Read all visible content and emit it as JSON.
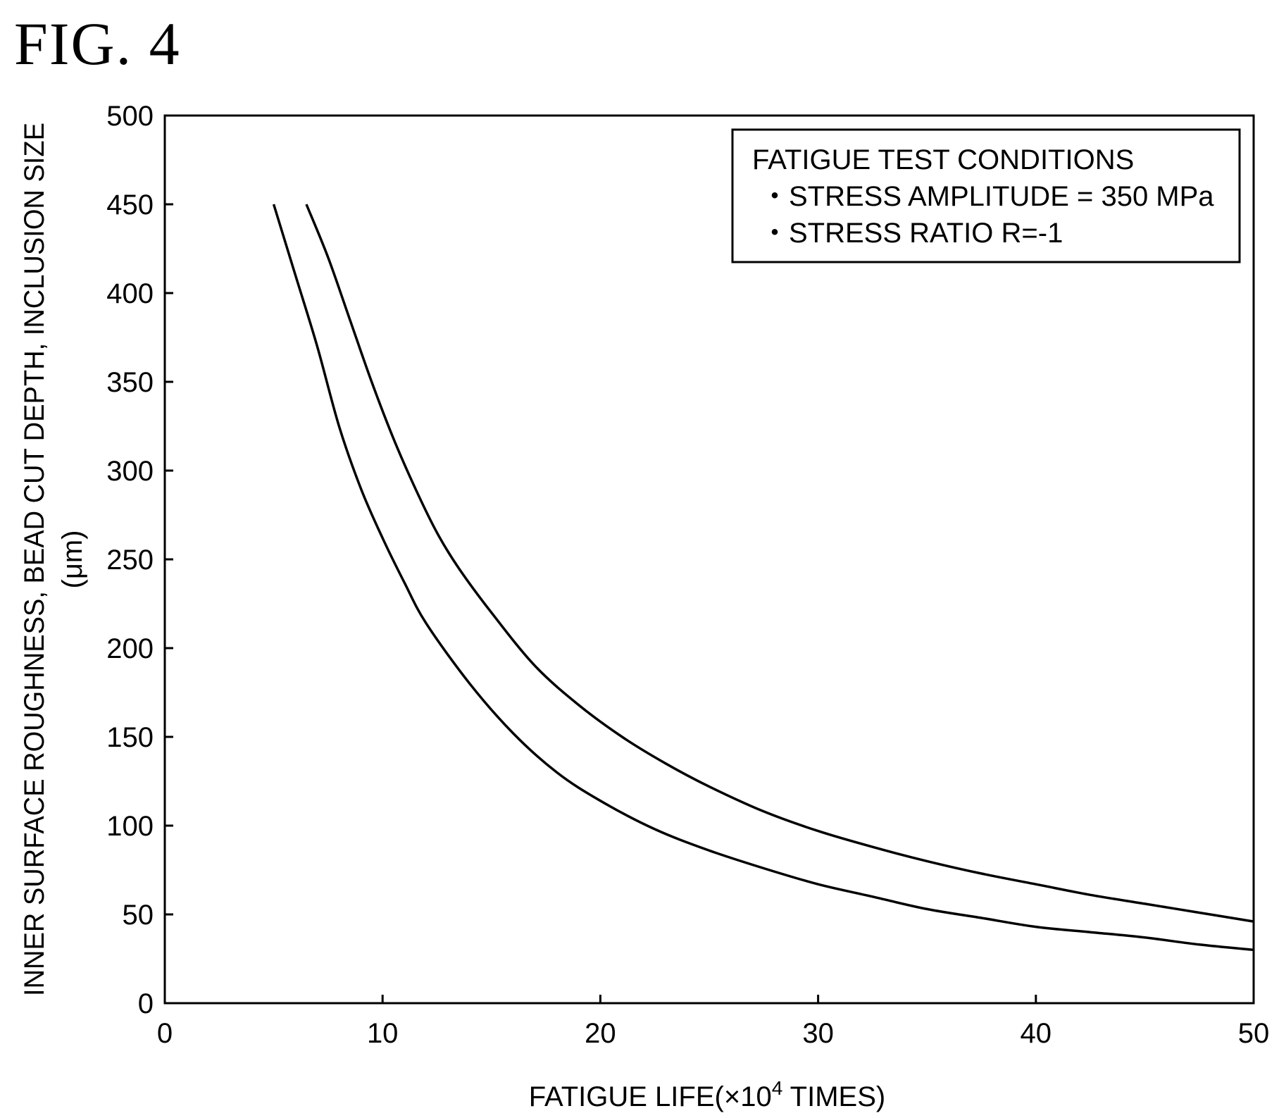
{
  "figure_label": "FIG. 4",
  "chart_data": {
    "type": "line",
    "xlabel_main": "FATIGUE LIFE(×10",
    "xlabel_sup": "4",
    "xlabel_tail": " TIMES)",
    "ylabel_line1": "INNER SURFACE ROUGHNESS, BEAD CUT DEPTH, INCLUSION SIZE",
    "ylabel_line2": "(μm)",
    "xlim": [
      0,
      50
    ],
    "ylim": [
      0,
      500
    ],
    "xticks": [
      0,
      10,
      20,
      30,
      40,
      50
    ],
    "yticks": [
      0,
      50,
      100,
      150,
      200,
      250,
      300,
      350,
      400,
      450,
      500
    ],
    "grid": false,
    "legend_box": {
      "placement": "top-right",
      "title": "FATIGUE TEST CONDITIONS",
      "lines": [
        "・STRESS AMPLITUDE = 350 MPa",
        "・STRESS RATIO R=-1"
      ]
    },
    "series": [
      {
        "x": [
          5.0,
          6.0,
          7.0,
          8.0,
          9.0,
          10.0,
          11.0,
          12.0,
          14.0,
          16.0,
          18.0,
          20.0,
          22.5,
          25.0,
          27.5,
          30.0,
          32.5,
          35.0,
          37.5,
          40.0,
          42.5,
          45.0,
          47.5,
          50.0
        ],
        "y": [
          450,
          410,
          370,
          325,
          290,
          262,
          237,
          214,
          180,
          152,
          130,
          114,
          98,
          86,
          76,
          67,
          60,
          53,
          48,
          43,
          40,
          37,
          33,
          30
        ],
        "color": "#000000"
      },
      {
        "x": [
          6.5,
          7.5,
          8.5,
          9.5,
          10.5,
          11.5,
          12.5,
          13.5,
          15.0,
          17.0,
          19.0,
          21.0,
          23.0,
          25.0,
          27.5,
          30.0,
          32.5,
          35.0,
          37.5,
          40.0,
          42.5,
          45.0,
          47.5,
          50.0
        ],
        "y": [
          450,
          420,
          385,
          350,
          318,
          290,
          265,
          245,
          220,
          190,
          168,
          150,
          135,
          122,
          108,
          97,
          88,
          80,
          73,
          67,
          61,
          56,
          51,
          46
        ],
        "color": "#000000"
      }
    ]
  }
}
